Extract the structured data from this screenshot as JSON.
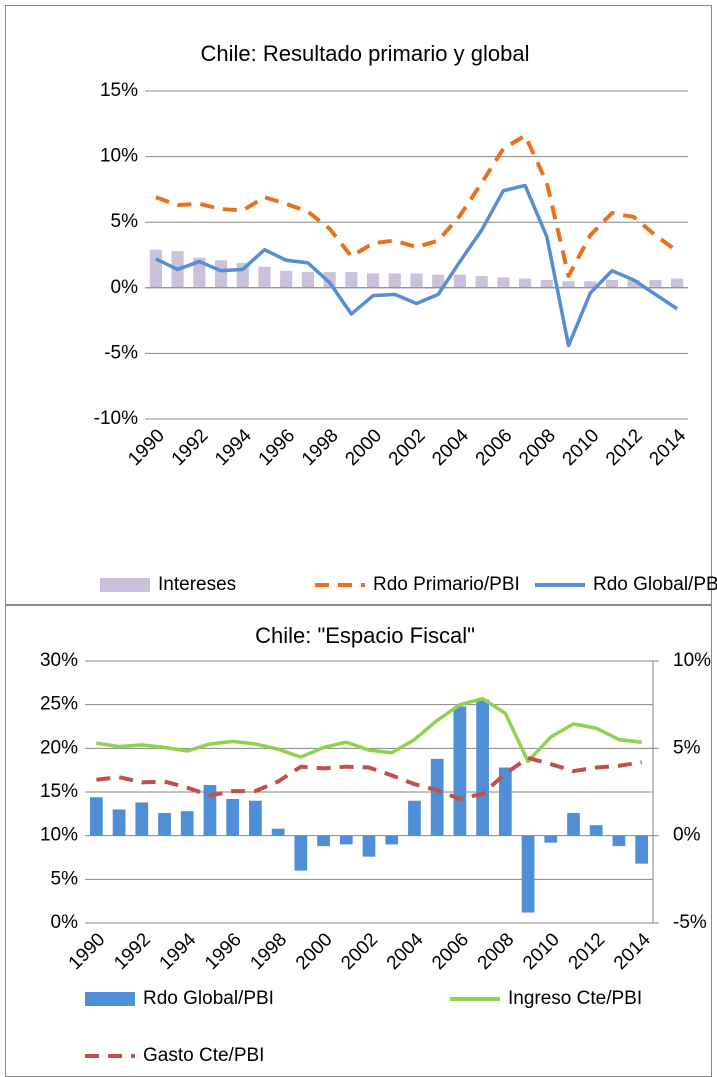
{
  "chart_data": [
    {
      "type": "combo",
      "title": "Chile: Resultado primario y global",
      "categories": [
        "1990",
        null,
        "1992",
        null,
        "1994",
        null,
        "1996",
        null,
        "1998",
        null,
        "2000",
        null,
        "2002",
        null,
        "2004",
        null,
        "2006",
        null,
        "2008",
        null,
        "2010",
        null,
        "2012",
        null,
        "2014"
      ],
      "ylim": [
        -10,
        15
      ],
      "yticks": [
        {
          "value": -10,
          "label": "-10%"
        },
        {
          "value": -5,
          "label": "-5%"
        },
        {
          "value": 0,
          "label": "0%"
        },
        {
          "value": 5,
          "label": "5%"
        },
        {
          "value": 10,
          "label": "10%"
        },
        {
          "value": 15,
          "label": "15%"
        }
      ],
      "grid": true,
      "legend": "bottom",
      "series": [
        {
          "name": "Intereses",
          "type": "bar",
          "color": "#ccc1da",
          "values": [
            2.9,
            2.8,
            2.3,
            2.1,
            1.9,
            1.6,
            1.3,
            1.2,
            1.2,
            1.2,
            1.1,
            1.1,
            1.1,
            1.0,
            1.0,
            0.9,
            0.8,
            0.7,
            0.6,
            0.5,
            0.5,
            0.6,
            0.6,
            0.6,
            0.7
          ]
        },
        {
          "name": "Rdo Primario/PBI",
          "type": "line",
          "dashed": true,
          "color": "#e8711d",
          "values": [
            6.9,
            6.3,
            6.4,
            6.0,
            5.9,
            6.9,
            6.4,
            5.8,
            4.5,
            2.4,
            3.4,
            3.6,
            3.1,
            3.6,
            5.5,
            8.0,
            10.6,
            11.6,
            8.0,
            0.9,
            4.0,
            5.7,
            5.4,
            4.0,
            2.8
          ]
        },
        {
          "name": "Rdo Global/PBI",
          "type": "line",
          "dashed": false,
          "color": "#558ed5",
          "values": [
            2.2,
            1.4,
            2.0,
            1.3,
            1.4,
            2.9,
            2.1,
            1.9,
            0.4,
            -2.0,
            -0.6,
            -0.5,
            -1.2,
            -0.5,
            2.0,
            4.4,
            7.4,
            7.8,
            3.9,
            -4.4,
            -0.4,
            1.3,
            0.6,
            -0.5,
            -1.6
          ]
        }
      ]
    },
    {
      "type": "combo",
      "title": "Chile: \"Espacio Fiscal\"",
      "categories": [
        "1990",
        null,
        "1992",
        null,
        "1994",
        null,
        "1996",
        null,
        "1998",
        null,
        "2000",
        null,
        "2002",
        null,
        "2004",
        null,
        "2006",
        null,
        "2008",
        null,
        "2010",
        null,
        "2012",
        null,
        "2014"
      ],
      "ylim": [
        0,
        30
      ],
      "yticks": [
        {
          "value": 0,
          "label": "0%"
        },
        {
          "value": 5,
          "label": "5%"
        },
        {
          "value": 10,
          "label": "10%"
        },
        {
          "value": 15,
          "label": "15%"
        },
        {
          "value": 20,
          "label": "20%"
        },
        {
          "value": 25,
          "label": "25%"
        },
        {
          "value": 30,
          "label": "30%"
        }
      ],
      "y2lim": [
        -5,
        10
      ],
      "y2ticks": [
        {
          "value": -5,
          "label": "-5%"
        },
        {
          "value": 0,
          "label": "0%"
        },
        {
          "value": 5,
          "label": "5%"
        },
        {
          "value": 10,
          "label": "10%"
        }
      ],
      "grid": true,
      "legend": "bottom",
      "series": [
        {
          "name": "Rdo Global/PBI",
          "type": "bar",
          "axis": "y2",
          "color": "#4f8fd8",
          "values": [
            2.2,
            1.5,
            1.9,
            1.3,
            1.4,
            2.9,
            2.1,
            2.0,
            0.4,
            -2.0,
            -0.6,
            -0.5,
            -1.2,
            -0.5,
            2.0,
            4.4,
            7.4,
            7.8,
            3.9,
            -4.4,
            -0.4,
            1.3,
            0.6,
            -0.6,
            -1.6
          ]
        },
        {
          "name": "Ingreso Cte/PBI",
          "type": "line",
          "dashed": false,
          "color": "#92d050",
          "values": [
            20.6,
            20.2,
            20.4,
            20.1,
            19.7,
            20.5,
            20.8,
            20.5,
            19.9,
            19.0,
            20.1,
            20.7,
            19.8,
            19.5,
            21.0,
            23.2,
            25.0,
            25.7,
            24.0,
            18.5,
            21.3,
            22.8,
            22.3,
            21.0,
            20.7
          ]
        },
        {
          "name": "Gasto Cte/PBI",
          "type": "line",
          "dashed": true,
          "color": "#c0504d",
          "values": [
            16.4,
            16.7,
            16.1,
            16.2,
            15.5,
            14.6,
            15.1,
            15.1,
            16.2,
            17.9,
            17.7,
            17.9,
            17.8,
            16.9,
            15.9,
            15.2,
            14.2,
            14.8,
            17.1,
            18.9,
            18.2,
            17.4,
            17.8,
            18.0,
            18.4
          ]
        }
      ]
    }
  ]
}
